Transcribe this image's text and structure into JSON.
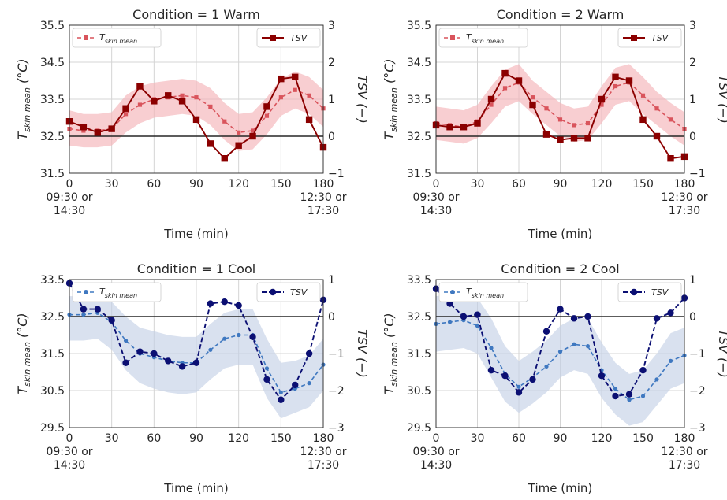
{
  "chart_data": [
    {
      "type": "line",
      "title": "Condition = 1 Warm",
      "xlabel": "Time (min)",
      "ylabel_left": "T_skin mean (°C)",
      "ylabel_right": "TSV (−)",
      "xlim": [
        0,
        180
      ],
      "ylim_left": [
        31.5,
        35.5
      ],
      "ylim_right": [
        -1,
        3
      ],
      "yticks_left": [
        "31.5",
        "32.5",
        "33.5",
        "34.5",
        "35.5"
      ],
      "yticks_right": [
        "−1",
        "0",
        "1",
        "2",
        "3"
      ],
      "xticks": [
        "0\n09:30 or\n14:30",
        "30",
        "60",
        "90",
        "120",
        "150",
        "180\n12:30 or\n17:30"
      ],
      "grid": true,
      "reference_line": {
        "axis": "right",
        "value": 0
      },
      "series": [
        {
          "name": "T_skin mean",
          "axis": "left",
          "color": "#d9545c",
          "band_color": "#f4b4b8",
          "marker": "square",
          "line": "dashed",
          "x": [
            0,
            10,
            20,
            30,
            40,
            50,
            60,
            70,
            80,
            90,
            100,
            110,
            120,
            130,
            140,
            150,
            160,
            170,
            180
          ],
          "values": [
            32.7,
            32.65,
            32.65,
            32.7,
            33.1,
            33.35,
            33.5,
            33.55,
            33.6,
            33.55,
            33.3,
            32.9,
            32.6,
            32.65,
            33.05,
            33.55,
            33.75,
            33.6,
            33.25
          ],
          "lower": [
            32.25,
            32.2,
            32.2,
            32.25,
            32.6,
            32.85,
            33.0,
            33.05,
            33.1,
            33.05,
            32.8,
            32.4,
            32.1,
            32.15,
            32.55,
            33.05,
            33.25,
            33.1,
            32.75
          ],
          "upper": [
            33.2,
            33.1,
            33.1,
            33.15,
            33.6,
            33.85,
            33.95,
            34.0,
            34.05,
            34.0,
            33.8,
            33.4,
            33.1,
            33.15,
            33.55,
            34.05,
            34.25,
            34.1,
            33.75
          ]
        },
        {
          "name": "TSV",
          "axis": "right",
          "color": "#8b0000",
          "marker": "square",
          "line": "solid",
          "x": [
            0,
            10,
            20,
            30,
            40,
            50,
            60,
            70,
            80,
            90,
            100,
            110,
            120,
            130,
            140,
            150,
            160,
            170,
            180
          ],
          "values": [
            0.4,
            0.25,
            0.1,
            0.2,
            0.75,
            1.35,
            0.95,
            1.1,
            0.95,
            0.45,
            -0.2,
            -0.6,
            -0.25,
            0.0,
            0.8,
            1.55,
            1.6,
            0.45,
            -0.3
          ]
        }
      ]
    },
    {
      "type": "line",
      "title": "Condition = 2 Warm",
      "xlabel": "Time (min)",
      "ylabel_left": "T_skin mean (°C)",
      "ylabel_right": "TSV (−)",
      "xlim": [
        0,
        180
      ],
      "ylim_left": [
        31.5,
        35.5
      ],
      "ylim_right": [
        -1,
        3
      ],
      "yticks_left": [
        "31.5",
        "32.5",
        "33.5",
        "34.5",
        "35.5"
      ],
      "yticks_right": [
        "−1",
        "0",
        "1",
        "2",
        "3"
      ],
      "xticks": [
        "0\n09:30 or\n14:30",
        "30",
        "60",
        "90",
        "120",
        "150",
        "180\n12:30 or\n17:30"
      ],
      "grid": true,
      "reference_line": {
        "axis": "right",
        "value": 0
      },
      "series": [
        {
          "name": "T_skin mean",
          "axis": "left",
          "color": "#d9545c",
          "band_color": "#f4b4b8",
          "marker": "square",
          "line": "dashed",
          "x": [
            0,
            10,
            20,
            30,
            40,
            50,
            60,
            70,
            80,
            90,
            100,
            110,
            120,
            130,
            140,
            150,
            160,
            170,
            180
          ],
          "values": [
            32.85,
            32.8,
            32.75,
            32.9,
            33.35,
            33.8,
            33.95,
            33.55,
            33.25,
            32.95,
            32.8,
            32.85,
            33.35,
            33.85,
            33.95,
            33.6,
            33.25,
            32.95,
            32.7
          ],
          "lower": [
            32.4,
            32.35,
            32.3,
            32.45,
            32.85,
            33.3,
            33.45,
            33.1,
            32.8,
            32.5,
            32.35,
            32.4,
            32.85,
            33.35,
            33.45,
            33.1,
            32.8,
            32.5,
            32.25
          ],
          "upper": [
            33.3,
            33.25,
            33.2,
            33.35,
            33.85,
            34.3,
            34.45,
            34.0,
            33.7,
            33.4,
            33.25,
            33.3,
            33.85,
            34.35,
            34.45,
            34.1,
            33.7,
            33.4,
            33.15
          ]
        },
        {
          "name": "TSV",
          "axis": "right",
          "color": "#8b0000",
          "marker": "square",
          "line": "solid",
          "x": [
            0,
            10,
            20,
            30,
            40,
            50,
            60,
            70,
            80,
            90,
            100,
            110,
            120,
            130,
            140,
            150,
            160,
            170,
            180
          ],
          "values": [
            0.3,
            0.25,
            0.25,
            0.35,
            1.0,
            1.7,
            1.5,
            0.85,
            0.05,
            -0.1,
            -0.05,
            -0.05,
            1.0,
            1.6,
            1.5,
            0.45,
            0.0,
            -0.6,
            -0.55
          ]
        }
      ]
    },
    {
      "type": "line",
      "title": "Condition = 1 Cool",
      "xlabel": "Time (min)",
      "ylabel_left": "T_skin mean (°C)",
      "ylabel_right": "TSV (−)",
      "xlim": [
        0,
        180
      ],
      "ylim_left": [
        29.5,
        33.5
      ],
      "ylim_right": [
        -3,
        1
      ],
      "yticks_left": [
        "29.5",
        "30.5",
        "31.5",
        "32.5",
        "33.5"
      ],
      "yticks_right": [
        "−3",
        "−2",
        "−1",
        "0",
        "1"
      ],
      "xticks": [
        "0\n09:30 or\n14:30",
        "30",
        "60",
        "90",
        "120",
        "150",
        "180\n12:30 or\n17:30"
      ],
      "grid": true,
      "reference_line": {
        "axis": "right",
        "value": 0
      },
      "series": [
        {
          "name": "T_skin mean",
          "axis": "left",
          "color": "#3f78c0",
          "band_color": "#c5d1e7",
          "marker": "circle",
          "line": "dashed",
          "x": [
            0,
            10,
            20,
            30,
            40,
            50,
            60,
            70,
            80,
            90,
            100,
            110,
            120,
            130,
            140,
            150,
            160,
            170,
            180
          ],
          "values": [
            32.55,
            32.55,
            32.6,
            32.35,
            31.85,
            31.5,
            31.4,
            31.3,
            31.25,
            31.25,
            31.6,
            31.9,
            32.0,
            32.0,
            31.1,
            30.45,
            30.55,
            30.7,
            31.2
          ],
          "lower": [
            31.85,
            31.85,
            31.9,
            31.6,
            31.05,
            30.7,
            30.55,
            30.45,
            30.4,
            30.45,
            30.8,
            31.1,
            31.2,
            31.2,
            30.3,
            29.75,
            29.9,
            30.05,
            30.5
          ],
          "upper": [
            33.05,
            33.05,
            33.1,
            32.9,
            32.5,
            32.2,
            32.1,
            32.0,
            31.95,
            31.95,
            32.3,
            32.6,
            32.7,
            32.7,
            31.9,
            31.25,
            31.3,
            31.45,
            31.9
          ]
        },
        {
          "name": "TSV",
          "axis": "right",
          "color": "#0b0f73",
          "marker": "circle",
          "line": "dashed",
          "x": [
            0,
            10,
            20,
            30,
            40,
            50,
            60,
            70,
            80,
            90,
            100,
            110,
            120,
            130,
            140,
            150,
            160,
            170,
            180
          ],
          "values": [
            0.9,
            0.2,
            0.2,
            -0.1,
            -1.25,
            -0.95,
            -1.0,
            -1.2,
            -1.35,
            -1.25,
            0.35,
            0.4,
            0.3,
            -0.55,
            -1.7,
            -2.25,
            -1.85,
            -1.0,
            0.45
          ]
        }
      ]
    },
    {
      "type": "line",
      "title": "Condition = 2 Cool",
      "xlabel": "Time (min)",
      "ylabel_left": "T_skin mean (°C)",
      "ylabel_right": "TSV (−)",
      "xlim": [
        0,
        180
      ],
      "ylim_left": [
        29.5,
        33.5
      ],
      "ylim_right": [
        -3,
        1
      ],
      "yticks_left": [
        "29.5",
        "30.5",
        "31.5",
        "32.5",
        "33.5"
      ],
      "yticks_right": [
        "−3",
        "−2",
        "−1",
        "0",
        "1"
      ],
      "xticks": [
        "0\n09:30 or\n14:30",
        "30",
        "60",
        "90",
        "120",
        "150",
        "180\n12:30 or\n17:30"
      ],
      "grid": true,
      "reference_line": {
        "axis": "right",
        "value": 0
      },
      "series": [
        {
          "name": "T_skin mean",
          "axis": "left",
          "color": "#3f78c0",
          "band_color": "#c5d1e7",
          "marker": "circle",
          "line": "dashed",
          "x": [
            0,
            10,
            20,
            30,
            40,
            50,
            60,
            70,
            80,
            90,
            100,
            110,
            120,
            130,
            140,
            150,
            160,
            170,
            180
          ],
          "values": [
            32.3,
            32.35,
            32.4,
            32.25,
            31.65,
            30.95,
            30.6,
            30.85,
            31.15,
            31.55,
            31.75,
            31.7,
            31.05,
            30.55,
            30.25,
            30.35,
            30.8,
            31.3,
            31.45
          ],
          "lower": [
            31.55,
            31.6,
            31.65,
            31.5,
            30.85,
            30.2,
            29.9,
            30.15,
            30.45,
            30.85,
            31.05,
            30.95,
            30.3,
            29.85,
            29.55,
            29.65,
            30.1,
            30.55,
            30.7
          ],
          "upper": [
            33.05,
            33.1,
            33.15,
            33.0,
            32.45,
            31.7,
            31.3,
            31.55,
            31.85,
            32.25,
            32.45,
            32.45,
            31.8,
            31.25,
            30.95,
            31.05,
            31.5,
            32.05,
            32.2
          ]
        },
        {
          "name": "TSV",
          "axis": "right",
          "color": "#0b0f73",
          "marker": "circle",
          "line": "dashed",
          "x": [
            0,
            10,
            20,
            30,
            40,
            50,
            60,
            70,
            80,
            90,
            100,
            110,
            120,
            130,
            140,
            150,
            160,
            170,
            180
          ],
          "values": [
            0.75,
            0.35,
            0.0,
            0.05,
            -1.45,
            -1.6,
            -2.05,
            -1.7,
            -0.4,
            0.2,
            -0.05,
            0.0,
            -1.6,
            -2.15,
            -2.1,
            -1.45,
            -0.05,
            0.1,
            0.5
          ]
        }
      ]
    }
  ]
}
